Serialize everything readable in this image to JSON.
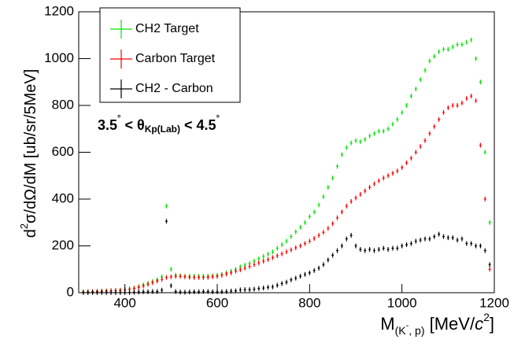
{
  "chart_data": {
    "type": "scatter",
    "y_label": [
      "d",
      "2",
      "σ/dΩ/dM [ub/sr/5MeV]"
    ],
    "x_label": [
      "M",
      "(K",
      "-",
      ", p)",
      " [MeV/",
      "c",
      "2",
      "]"
    ],
    "annotation": [
      "3.5",
      "°",
      " < θ",
      "Kp(Lab)",
      " < 4.5",
      "°"
    ],
    "legend": "top-left",
    "xlim": [
      300,
      1200
    ],
    "xticks": [
      400,
      600,
      800,
      1000,
      1200
    ],
    "ylim": [
      0,
      1200
    ],
    "yticks": [
      0,
      200,
      400,
      600,
      800,
      1000,
      1200
    ],
    "x": [
      310,
      320,
      330,
      340,
      350,
      360,
      370,
      380,
      390,
      400,
      410,
      420,
      430,
      440,
      450,
      460,
      470,
      480,
      490,
      500,
      510,
      520,
      530,
      540,
      550,
      560,
      570,
      580,
      590,
      600,
      610,
      620,
      630,
      640,
      650,
      660,
      670,
      680,
      690,
      700,
      710,
      720,
      730,
      740,
      750,
      760,
      770,
      780,
      790,
      800,
      810,
      820,
      830,
      840,
      850,
      860,
      870,
      880,
      890,
      900,
      910,
      920,
      930,
      940,
      950,
      960,
      970,
      980,
      990,
      1000,
      1010,
      1020,
      1030,
      1040,
      1050,
      1060,
      1070,
      1080,
      1090,
      1100,
      1110,
      1120,
      1130,
      1140,
      1150,
      1160,
      1170,
      1180,
      1190
    ],
    "series": [
      {
        "name": "CH2 Target",
        "color": "#00e600",
        "values": [
          3,
          4,
          5,
          6,
          7,
          8,
          9,
          10,
          11,
          13,
          16,
          20,
          26,
          33,
          40,
          48,
          55,
          68,
          370,
          100,
          75,
          72,
          70,
          70,
          70,
          70,
          70,
          70,
          72,
          74,
          78,
          85,
          92,
          100,
          110,
          118,
          125,
          135,
          145,
          155,
          165,
          175,
          190,
          205,
          220,
          240,
          260,
          280,
          300,
          325,
          345,
          375,
          410,
          450,
          490,
          540,
          590,
          620,
          640,
          650,
          645,
          655,
          670,
          680,
          690,
          690,
          700,
          720,
          740,
          770,
          800,
          840,
          870,
          910,
          950,
          990,
          1010,
          1030,
          1040,
          1040,
          1050,
          1060,
          1060,
          1070,
          1080,
          1000,
          900,
          600,
          300
        ]
      },
      {
        "name": "Carbon Target",
        "color": "#ff0000",
        "values": [
          2,
          3,
          4,
          5,
          6,
          7,
          8,
          9,
          10,
          12,
          15,
          18,
          23,
          29,
          36,
          43,
          50,
          57,
          65,
          68,
          70,
          70,
          68,
          66,
          65,
          65,
          65,
          66,
          68,
          70,
          75,
          80,
          85,
          92,
          98,
          105,
          112,
          120,
          127,
          135,
          142,
          150,
          158,
          166,
          175,
          183,
          192,
          200,
          210,
          220,
          232,
          245,
          258,
          275,
          295,
          320,
          345,
          370,
          390,
          405,
          420,
          435,
          450,
          465,
          478,
          490,
          500,
          510,
          520,
          535,
          555,
          575,
          600,
          625,
          650,
          680,
          710,
          740,
          770,
          790,
          800,
          800,
          810,
          830,
          840,
          820,
          630,
          400,
          100
        ]
      },
      {
        "name": "CH2 - Carbon",
        "color": "#000000",
        "values": [
          1,
          1,
          1,
          1,
          1,
          1,
          1,
          1,
          1,
          1,
          1,
          2,
          3,
          4,
          4,
          5,
          5,
          11,
          305,
          30,
          5,
          3,
          2,
          3,
          4,
          4,
          5,
          5,
          4,
          4,
          4,
          5,
          7,
          8,
          12,
          13,
          13,
          15,
          18,
          20,
          23,
          25,
          32,
          39,
          45,
          55,
          62,
          70,
          78,
          85,
          95,
          105,
          120,
          140,
          160,
          180,
          200,
          230,
          245,
          200,
          185,
          180,
          185,
          180,
          185,
          190,
          185,
          190,
          190,
          200,
          205,
          210,
          220,
          225,
          230,
          230,
          240,
          250,
          240,
          235,
          235,
          225,
          230,
          210,
          210,
          200,
          200,
          180,
          120
        ]
      }
    ]
  }
}
